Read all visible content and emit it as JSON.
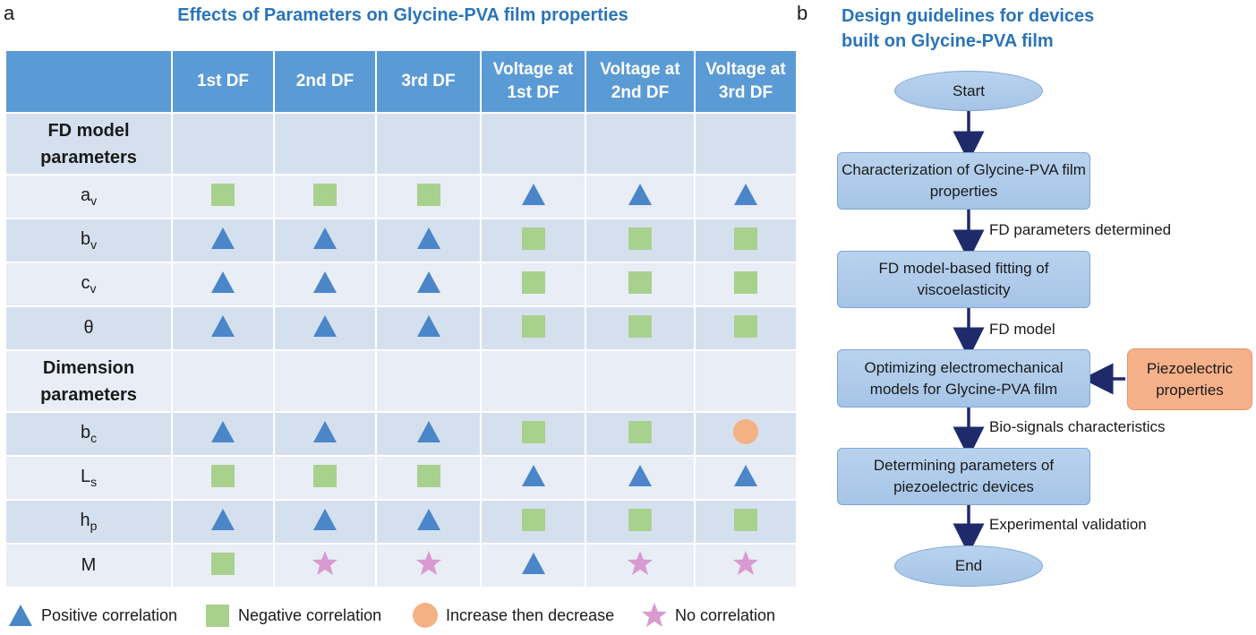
{
  "panel_a": {
    "letter": "a",
    "title": "Effects of Parameters on Glycine-PVA film properties",
    "columns": [
      "1st DF",
      "2nd DF",
      "3rd DF",
      "Voltage at 1st DF",
      "Voltage at 2nd DF",
      "Voltage at 3rd DF"
    ],
    "section1": "FD model parameters",
    "section2": "Dimension parameters",
    "rows": [
      {
        "base": "a",
        "sub": "v",
        "cells": [
          "negative",
          "negative",
          "negative",
          "positive",
          "positive",
          "positive"
        ]
      },
      {
        "base": "b",
        "sub": "v",
        "cells": [
          "positive",
          "positive",
          "positive",
          "negative",
          "negative",
          "negative"
        ]
      },
      {
        "base": "c",
        "sub": "v",
        "cells": [
          "positive",
          "positive",
          "positive",
          "negative",
          "negative",
          "negative"
        ]
      },
      {
        "base": "θ",
        "sub": "",
        "cells": [
          "positive",
          "positive",
          "positive",
          "negative",
          "negative",
          "negative"
        ]
      },
      {
        "base": "b",
        "sub": "c",
        "cells": [
          "positive",
          "positive",
          "positive",
          "negative",
          "negative",
          "increase-decrease"
        ]
      },
      {
        "base": "L",
        "sub": "s",
        "cells": [
          "negative",
          "negative",
          "negative",
          "positive",
          "positive",
          "positive"
        ]
      },
      {
        "base": "h",
        "sub": "p",
        "cells": [
          "positive",
          "positive",
          "positive",
          "negative",
          "negative",
          "negative"
        ]
      },
      {
        "base": "M",
        "sub": "",
        "cells": [
          "negative",
          "none",
          "none",
          "positive",
          "none",
          "none"
        ]
      }
    ],
    "legend": {
      "positive": "Positive correlation",
      "negative": "Negative correlation",
      "increase_decrease": "Increase then decrease",
      "none": "No correlation"
    },
    "colors": {
      "header": "#5b9bd5",
      "row_odd": "#d5e0ef",
      "row_even": "#e8edf6",
      "positive": "#4a86c8",
      "negative": "#a9d18e",
      "increase_decrease": "#f4b183",
      "none": "#d99ad0"
    },
    "icons": {
      "positive": "triangle-icon",
      "negative": "square-icon",
      "increase_decrease": "circle-icon",
      "none": "star-icon"
    }
  },
  "panel_b": {
    "letter": "b",
    "title_line1": "Design guidelines for devices",
    "title_line2": "built on Glycine-PVA film",
    "start": "Start",
    "step1": "Characterization of Glycine-PVA film properties",
    "edge1": "FD parameters determined",
    "step2": "FD model-based fitting of viscoelasticity",
    "edge2": "FD model",
    "step3": "Optimizing electromechanical models for Glycine-PVA film",
    "side_input": "Piezoelectric properties",
    "edge3": "Bio-signals characteristics",
    "step4": "Determining parameters of piezoelectric devices",
    "edge4": "Experimental validation",
    "end": "End"
  }
}
